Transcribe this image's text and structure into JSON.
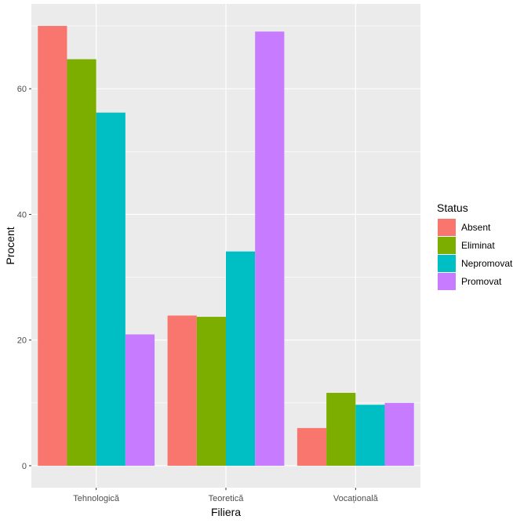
{
  "chart_data": {
    "type": "bar",
    "xlabel": "Filiera",
    "ylabel": "Procent",
    "categories": [
      "Tehnologică",
      "Teoretică",
      "Vocațională"
    ],
    "series": [
      {
        "name": "Absent",
        "color": "#F8766D",
        "values": [
          70.0,
          23.9,
          6.0
        ]
      },
      {
        "name": "Eliminat",
        "color": "#7CAE00",
        "values": [
          64.7,
          23.7,
          11.6
        ]
      },
      {
        "name": "Nepromovat",
        "color": "#00BFC4",
        "values": [
          56.2,
          34.1,
          9.7
        ]
      },
      {
        "name": "Promovat",
        "color": "#C77CFF",
        "values": [
          20.9,
          69.1,
          10.0
        ]
      }
    ],
    "ylim": [
      -3.5,
      73.5
    ],
    "yticks": [
      0,
      20,
      40,
      60
    ],
    "legend": {
      "title": "Status",
      "position": "right"
    },
    "grid": true,
    "panel_background": "#EBEBEB"
  }
}
